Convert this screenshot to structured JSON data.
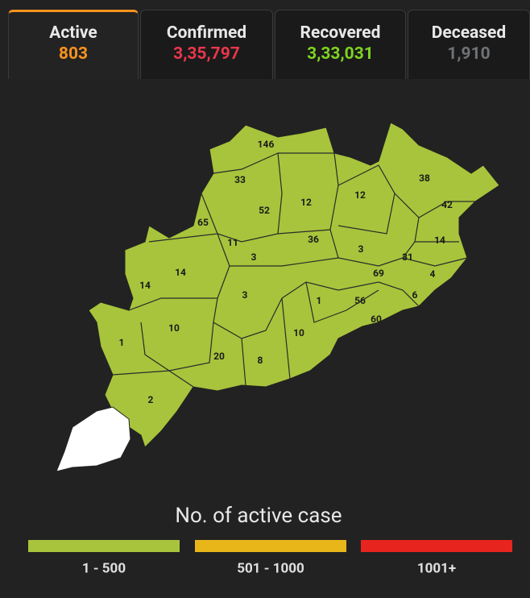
{
  "tabs": [
    {
      "label": "Active",
      "value": "803"
    },
    {
      "label": "Confirmed",
      "value": "3,35,797"
    },
    {
      "label": "Recovered",
      "value": "3,33,031"
    },
    {
      "label": "Deceased",
      "value": "1,910"
    }
  ],
  "map": {
    "district_values": [
      146,
      33,
      52,
      12,
      12,
      38,
      42,
      65,
      11,
      36,
      3,
      14,
      31,
      3,
      14,
      14,
      69,
      4,
      3,
      1,
      56,
      6,
      60,
      10,
      1,
      10,
      20,
      8,
      2
    ]
  },
  "legend": {
    "title": "No. of active case",
    "items": [
      "1 - 500",
      "501 - 1000",
      "1001+"
    ]
  }
}
